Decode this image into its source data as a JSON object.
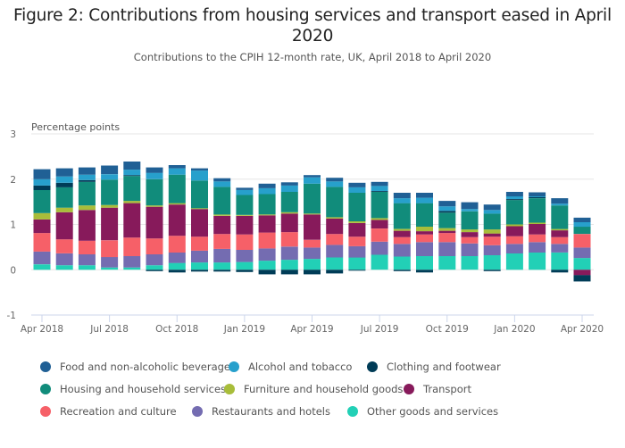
{
  "title": "Figure 2: Contributions from housing services and transport eased in April 2020",
  "subtitle": "Contributions to the CPIH 12-month rate, UK, April 2018 to April 2020",
  "chart_data": {
    "type": "bar",
    "stacked": true,
    "title": "Figure 2: Contributions from housing services and transport eased in April 2020",
    "subtitle": "Contributions to the CPIH 12-month rate, UK, April 2018 to April 2020",
    "xlabel": "",
    "ylabel": "Percentage points",
    "ylim": [
      -1,
      3
    ],
    "yticks": [
      "3",
      "2",
      "1",
      "0",
      "-1"
    ],
    "ytick_values": [
      3,
      2,
      1,
      0,
      -1
    ],
    "grid": true,
    "legend_position": "bottom",
    "categories": [
      "Apr 2018",
      "May 2018",
      "Jun 2018",
      "Jul 2018",
      "Aug 2018",
      "Sep 2018",
      "Oct 2018",
      "Nov 2018",
      "Dec 2018",
      "Jan 2019",
      "Feb 2019",
      "Mar 2019",
      "Apr 2019",
      "May 2019",
      "Jun 2019",
      "Jul 2019",
      "Aug 2019",
      "Sep 2019",
      "Oct 2019",
      "Nov 2019",
      "Dec 2019",
      "Jan 2020",
      "Feb 2020",
      "Mar 2020",
      "Apr 2020"
    ],
    "xtick_labels": [
      "Apr 2018",
      "Jul 2018",
      "Oct 2018",
      "Jan 2019",
      "Apr 2019",
      "Jul 2019",
      "Oct 2019",
      "Jan 2020",
      "Apr 2020"
    ],
    "xtick_indices": [
      0,
      3,
      6,
      9,
      12,
      15,
      18,
      21,
      24
    ],
    "series": [
      {
        "name": "Other goods and services",
        "color": "#22D0B6",
        "values": [
          0.12,
          0.1,
          0.1,
          0.05,
          0.05,
          0.1,
          0.15,
          0.16,
          0.16,
          0.17,
          0.2,
          0.22,
          0.24,
          0.27,
          0.27,
          0.33,
          0.29,
          0.3,
          0.3,
          0.3,
          0.32,
          0.36,
          0.38,
          0.38,
          0.26
        ]
      },
      {
        "name": "Restaurants and hotels",
        "color": "#746CB1",
        "values": [
          0.28,
          0.26,
          0.24,
          0.23,
          0.25,
          0.24,
          0.23,
          0.26,
          0.3,
          0.27,
          0.27,
          0.29,
          0.25,
          0.28,
          0.25,
          0.29,
          0.28,
          0.31,
          0.31,
          0.28,
          0.22,
          0.21,
          0.23,
          0.19,
          0.23
        ]
      },
      {
        "name": "Recreation and culture",
        "color": "#F66068",
        "values": [
          0.41,
          0.31,
          0.3,
          0.37,
          0.41,
          0.35,
          0.37,
          0.31,
          0.33,
          0.34,
          0.35,
          0.32,
          0.17,
          0.24,
          0.21,
          0.29,
          0.15,
          0.17,
          0.2,
          0.14,
          0.19,
          0.17,
          0.17,
          0.15,
          0.3
        ]
      },
      {
        "name": "Transport",
        "color": "#871A5B",
        "values": [
          0.3,
          0.6,
          0.68,
          0.72,
          0.76,
          0.7,
          0.69,
          0.61,
          0.4,
          0.41,
          0.38,
          0.41,
          0.56,
          0.34,
          0.3,
          0.19,
          0.14,
          0.07,
          0.05,
          0.11,
          0.07,
          0.22,
          0.23,
          0.15,
          -0.12
        ]
      },
      {
        "name": "Furniture and household goods",
        "color": "#A8BD3A",
        "values": [
          0.14,
          0.1,
          0.1,
          0.06,
          0.05,
          0.03,
          0.03,
          0.02,
          0.03,
          0.02,
          0.02,
          0.03,
          0.02,
          0.03,
          0.04,
          0.04,
          0.04,
          0.1,
          0.06,
          0.06,
          0.09,
          0.04,
          0.03,
          0.03,
          0.0
        ]
      },
      {
        "name": "Housing and household services",
        "color": "#118C7B",
        "values": [
          0.51,
          0.45,
          0.52,
          0.56,
          0.55,
          0.58,
          0.63,
          0.61,
          0.61,
          0.44,
          0.45,
          0.45,
          0.66,
          0.67,
          0.63,
          0.58,
          0.57,
          0.52,
          0.34,
          0.4,
          0.35,
          0.54,
          0.54,
          0.52,
          0.16
        ]
      },
      {
        "name": "Clothing and footwear",
        "color": "#003C57",
        "values": [
          0.1,
          0.1,
          0.04,
          0.0,
          0.02,
          -0.03,
          -0.06,
          -0.04,
          -0.04,
          -0.05,
          -0.1,
          -0.1,
          -0.1,
          -0.08,
          -0.02,
          0.02,
          -0.03,
          -0.06,
          0.04,
          0.0,
          -0.03,
          0.02,
          0.02,
          -0.06,
          -0.14
        ]
      },
      {
        "name": "Alcohol and tobacco",
        "color": "#27A0CC",
        "values": [
          0.14,
          0.14,
          0.12,
          0.12,
          0.12,
          0.14,
          0.14,
          0.22,
          0.12,
          0.11,
          0.13,
          0.14,
          0.14,
          0.12,
          0.12,
          0.11,
          0.11,
          0.12,
          0.1,
          0.05,
          0.08,
          0.06,
          0.02,
          0.04,
          0.1
        ]
      },
      {
        "name": "Food and non-alcoholic beverages",
        "color": "#206095",
        "values": [
          0.22,
          0.18,
          0.16,
          0.19,
          0.18,
          0.12,
          0.07,
          0.05,
          0.07,
          0.05,
          0.1,
          0.07,
          0.05,
          0.08,
          0.1,
          0.09,
          0.12,
          0.11,
          0.12,
          0.15,
          0.12,
          0.1,
          0.09,
          0.12,
          0.1
        ]
      }
    ]
  },
  "legend": [
    {
      "label": "Food and non-alcoholic beverages",
      "color": "#206095"
    },
    {
      "label": "Alcohol and tobacco",
      "color": "#27A0CC"
    },
    {
      "label": "Clothing and footwear",
      "color": "#003C57"
    },
    {
      "label": "Housing and household services",
      "color": "#118C7B"
    },
    {
      "label": "Furniture and household goods",
      "color": "#A8BD3A"
    },
    {
      "label": "Transport",
      "color": "#871A5B"
    },
    {
      "label": "Recreation and culture",
      "color": "#F66068"
    },
    {
      "label": "Restaurants and hotels",
      "color": "#746CB1"
    },
    {
      "label": "Other goods and services",
      "color": "#22D0B6"
    }
  ]
}
